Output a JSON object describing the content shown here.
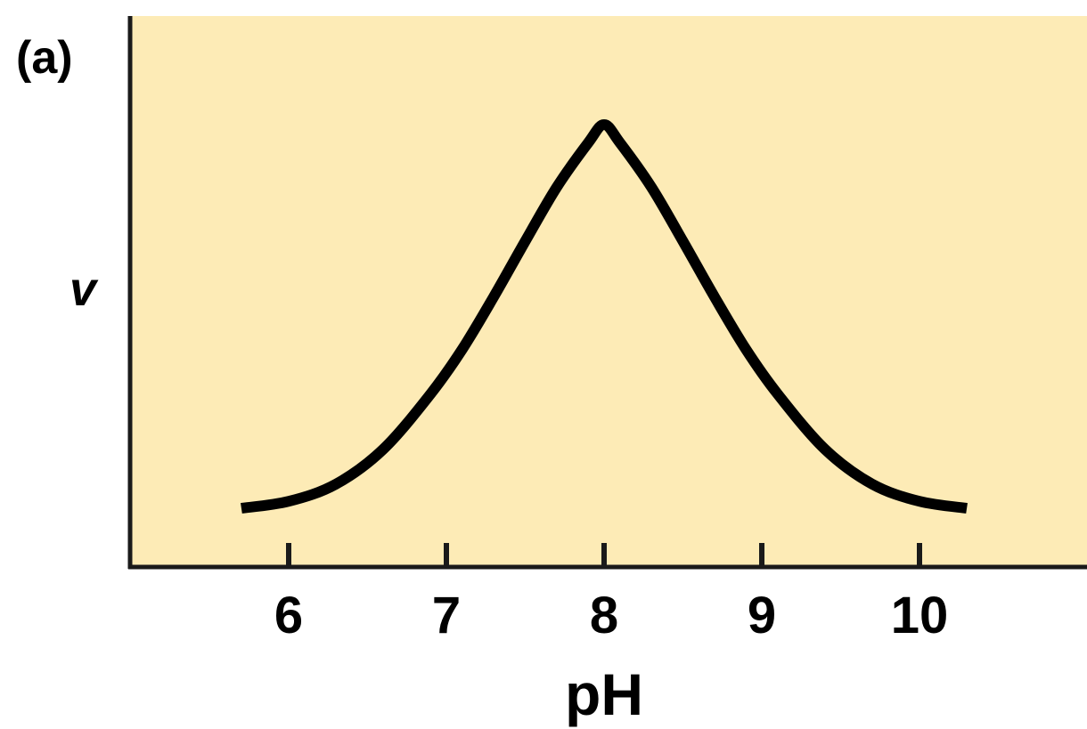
{
  "chart_data": {
    "type": "line",
    "panel_label": "(a)",
    "title": "",
    "xlabel": "pH",
    "ylabel": "v",
    "xticks": [
      6,
      7,
      8,
      9,
      10
    ],
    "xtick_labels": [
      "6",
      "7",
      "8",
      "9",
      "10"
    ],
    "xlim": [
      5,
      11
    ],
    "ylim": [
      0,
      1
    ],
    "grid": false,
    "series": [
      {
        "name": "v vs pH",
        "x": [
          5.7,
          6.0,
          6.3,
          6.6,
          6.9,
          7.1,
          7.3,
          7.5,
          7.7,
          7.9,
          8.0,
          8.1,
          8.3,
          8.5,
          8.7,
          8.9,
          9.1,
          9.4,
          9.7,
          10.0,
          10.3
        ],
        "y": [
          0.0,
          0.018,
          0.063,
          0.154,
          0.298,
          0.414,
          0.551,
          0.696,
          0.837,
          0.953,
          1.0,
          0.953,
          0.837,
          0.696,
          0.551,
          0.414,
          0.298,
          0.154,
          0.063,
          0.018,
          0.0
        ]
      }
    ]
  },
  "colors": {
    "plot_background": "#fdebb6",
    "axis": "#1a1a1a",
    "line": "#000000",
    "text": "#000000"
  }
}
